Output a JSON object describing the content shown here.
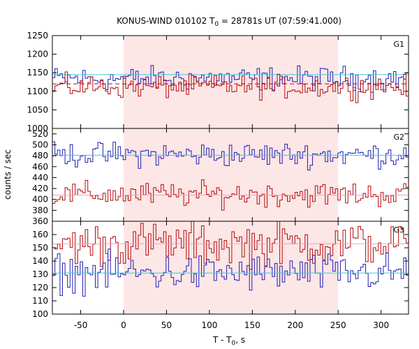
{
  "chart_data": {
    "type": "line",
    "title": "KONUS-WIND 010102 T",
    "title_sub": "0",
    "title_rest": " = 28781s UT (07:59:41.000)",
    "xlabel": "T - T",
    "xlabel_sub": "0",
    "xlabel_rest": ", s",
    "ylabel": "counts / sec",
    "xlim": [
      -83,
      332
    ],
    "x_ticks": [
      -50,
      0,
      50,
      100,
      150,
      200,
      250,
      300
    ],
    "x_tick_labels": [
      "-50",
      "0",
      "50",
      "100",
      "150",
      "200",
      "250",
      "300"
    ],
    "highlight_interval": [
      0,
      250
    ],
    "bin_width": 2.944,
    "colors": {
      "series_a": "#1f1fb4",
      "series_b": "#b40a0a",
      "highlight": "#fde6e6",
      "bg_line_a": "#40c8d8",
      "bg_line_b": "#f0a0c0"
    },
    "panels": [
      {
        "label": "G1",
        "ylim": [
          1000,
          1250
        ],
        "y_ticks": [
          1000,
          1050,
          1100,
          1150,
          1200,
          1250
        ],
        "y_tick_labels": [
          "1000",
          "1050",
          "1100",
          "1150",
          "1200",
          "1250"
        ],
        "series": [
          {
            "color": "series_a",
            "mean": 1134,
            "amp": 32,
            "bg_level": 1145,
            "bg_dashed": false
          },
          {
            "color": "series_b",
            "mean": 1112,
            "amp": 30,
            "bg_level": 1120,
            "bg_dashed": true
          }
        ]
      },
      {
        "label": "G2",
        "ylim": [
          360,
          530
        ],
        "y_ticks": [
          360,
          380,
          400,
          420,
          440,
          460,
          480,
          500,
          520
        ],
        "y_tick_labels": [
          "360",
          "380",
          "400",
          "420",
          "440",
          "460",
          "480",
          "500",
          "520"
        ],
        "series": [
          {
            "color": "series_a",
            "mean": 482,
            "amp": 22,
            "bg_level": 481,
            "bg_dashed": false
          },
          {
            "color": "series_b",
            "mean": 409,
            "amp": 22,
            "bg_level": 408,
            "bg_dashed": false
          }
        ]
      },
      {
        "label": "G3",
        "ylim": [
          100,
          170
        ],
        "y_ticks": [
          100,
          110,
          120,
          130,
          140,
          150,
          160
        ],
        "y_tick_labels": [
          "100",
          "110",
          "120",
          "130",
          "140",
          "150",
          "160"
        ],
        "series": [
          {
            "color": "series_b",
            "mean": 153,
            "amp": 16,
            "bg_level": 153,
            "bg_dashed": false
          },
          {
            "color": "series_a",
            "mean": 131,
            "amp": 14,
            "bg_level": 131,
            "bg_dashed": false
          }
        ]
      }
    ]
  }
}
